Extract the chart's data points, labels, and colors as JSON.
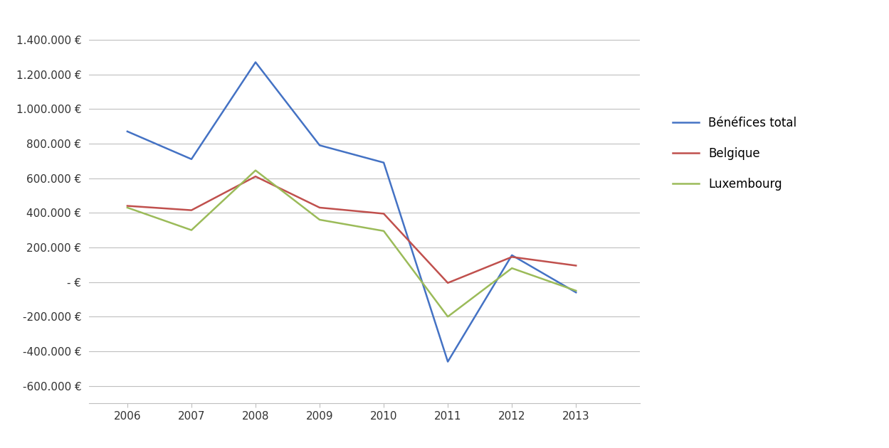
{
  "years": [
    2006,
    2007,
    2008,
    2009,
    2010,
    2011,
    2012,
    2013
  ],
  "benefices_total": [
    870000,
    710000,
    1270000,
    790000,
    690000,
    -460000,
    155000,
    -60000
  ],
  "belgique": [
    440000,
    415000,
    610000,
    430000,
    395000,
    -5000,
    145000,
    95000
  ],
  "luxembourg": [
    430000,
    300000,
    645000,
    360000,
    295000,
    -200000,
    80000,
    -50000
  ],
  "colors": {
    "benefices_total": "#4472C4",
    "belgique": "#C0504D",
    "luxembourg": "#9BBB59"
  },
  "legend_labels": [
    "Bénéfices total",
    "Belgique",
    "Luxembourg"
  ],
  "ylim": [
    -700000,
    1500000
  ],
  "yticks": [
    -600000,
    -400000,
    -200000,
    0,
    200000,
    400000,
    600000,
    800000,
    1000000,
    1200000,
    1400000
  ],
  "ytick_labels": [
    "-600.000 €",
    "-400.000 €",
    "-200.000 €",
    "- €",
    "200.000 €",
    "400.000 €",
    "600.000 €",
    "800.000 €",
    "1.000.000 €",
    "1.200.000 €",
    "1.400.000 €"
  ],
  "background_color": "#ffffff",
  "grid_color": "#BFBFBF",
  "line_width": 1.8,
  "xlim": [
    2005.4,
    2014.0
  ],
  "figsize": [
    12.49,
    6.3
  ],
  "dpi": 100
}
